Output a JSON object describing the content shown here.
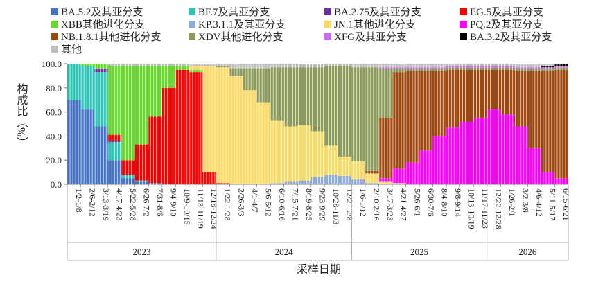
{
  "chart_data": {
    "type": "area",
    "stacked": true,
    "normalized": true,
    "x_tick_labels": [
      "1/2-1/8",
      "2/6-2/12",
      "3/13-3/19",
      "4/17-4/23",
      "5/22-5/28",
      "6/26-7/2",
      "7/31-8/6",
      "9/4-9/10",
      "10/9-10/15",
      "11/13-11/19",
      "12/18-12/24",
      "1/22-1/28",
      "2/26-3/3",
      "4/1-4/7",
      "5/6-5/12",
      "6/10-6/16",
      "7/15-7/21",
      "8/19-8/25",
      "9/23-9/29",
      "10/28-11/3",
      "12/2-12/8",
      "1/6-1/12",
      "2/10-2/16",
      "3/17-3/23",
      "4/21-4/27",
      "5/26-6/1",
      "6/30-7/6",
      "8/4-8/10",
      "9/8-9/14",
      "10/13-10/19",
      "11/17-11/23",
      "12/22-12/28",
      "1/26-2/1",
      "3/2-3/8",
      "4/6-4/12",
      "5/11-5/17",
      "6/15-6/21"
    ],
    "years": [
      {
        "label": "2023",
        "from": 0,
        "to": 10
      },
      {
        "label": "2024",
        "from": 11,
        "to": 20
      },
      {
        "label": "2025",
        "from": 21,
        "to": 30
      },
      {
        "label": "2026",
        "from": 31,
        "to": 36
      }
    ],
    "ylabel": "构成比（%）",
    "xlabel": "采样日期",
    "ylim": [
      0,
      100
    ],
    "y_ticks": [
      0,
      20,
      40,
      60,
      80,
      100
    ],
    "y_tick_labels": [
      "0.0",
      "20.0",
      "40.0",
      "60.0",
      "80.0",
      "100.0"
    ],
    "legend_position": "top",
    "series": [
      {
        "name": "BA.5.2及其亚分支",
        "color": "#4472C4",
        "values": [
          70,
          62,
          48,
          20,
          5,
          2,
          1,
          0,
          0,
          0,
          0,
          0,
          0,
          0,
          0,
          0,
          0,
          0,
          0,
          0,
          0,
          0,
          0,
          0,
          0,
          0,
          0,
          0,
          0,
          0,
          0,
          0,
          0,
          0,
          0,
          0,
          0
        ]
      },
      {
        "name": "BF.7及其亚分支",
        "color": "#2EC4B6",
        "values": [
          30,
          36,
          45,
          15,
          3,
          1,
          0,
          0,
          0,
          0,
          0,
          0,
          0,
          0,
          0,
          0,
          0,
          0,
          0,
          0,
          0,
          0,
          0,
          0,
          0,
          0,
          0,
          0,
          0,
          0,
          0,
          0,
          0,
          0,
          0,
          0,
          0
        ]
      },
      {
        "name": "BA.2.75及其亚分支",
        "color": "#7030A0",
        "values": [
          0,
          0,
          3,
          1,
          0,
          0,
          0,
          0,
          0,
          0,
          0,
          0,
          0,
          0,
          0,
          0,
          0,
          0,
          0,
          0,
          0,
          0,
          0,
          0,
          0,
          0,
          0,
          0,
          0,
          0,
          0,
          0,
          0,
          0,
          0,
          0,
          0
        ]
      },
      {
        "name": "EG.5及其亚分支",
        "color": "#FF0000",
        "values": [
          0,
          0,
          0,
          5,
          12,
          30,
          55,
          80,
          95,
          93,
          10,
          1,
          0,
          0,
          0,
          0,
          0,
          0,
          0,
          0,
          0,
          0,
          0,
          0,
          0,
          0,
          0,
          0,
          0,
          0,
          0,
          0,
          0,
          0,
          0,
          0,
          0
        ]
      },
      {
        "name": "XBB其他进化分支",
        "color": "#66D92A",
        "values": [
          0,
          2,
          4,
          57,
          78,
          65,
          42,
          18,
          3,
          2,
          0,
          0,
          0,
          0,
          0,
          0,
          0,
          0,
          0,
          0,
          0,
          0,
          0,
          0,
          0,
          0,
          0,
          0,
          0,
          0,
          0,
          0,
          0,
          0,
          0,
          0,
          0
        ]
      },
      {
        "name": "KP.3.1.1及其亚分支",
        "color": "#8FAADC",
        "values": [
          0,
          0,
          0,
          0,
          0,
          0,
          0,
          0,
          0,
          0,
          0,
          0,
          0,
          0,
          0,
          1,
          2,
          3,
          6,
          8,
          7,
          4,
          1,
          0,
          0,
          0,
          0,
          0,
          0,
          0,
          0,
          0,
          0,
          0,
          0,
          0,
          0
        ]
      },
      {
        "name": "JN.1其他进化分支",
        "color": "#FFD966",
        "values": [
          0,
          0,
          0,
          0,
          0,
          0,
          0,
          0,
          0,
          3,
          88,
          96,
          90,
          78,
          68,
          52,
          46,
          46,
          38,
          24,
          16,
          15,
          8,
          2,
          1,
          0,
          0,
          0,
          0,
          0,
          0,
          0,
          0,
          0,
          0,
          0,
          0
        ]
      },
      {
        "name": "PQ.2及其亚分支",
        "color": "#FF00FF",
        "values": [
          0,
          0,
          0,
          0,
          0,
          0,
          0,
          0,
          0,
          0,
          0,
          0,
          0,
          0,
          0,
          0,
          0,
          0,
          0,
          0,
          0,
          0,
          0,
          3,
          12,
          18,
          28,
          40,
          47,
          52,
          55,
          62,
          58,
          48,
          30,
          10,
          5
        ]
      },
      {
        "name": "NB.1.8.1其他进化分支",
        "color": "#9E480E",
        "values": [
          0,
          0,
          0,
          0,
          0,
          0,
          0,
          0,
          0,
          0,
          0,
          0,
          0,
          0,
          0,
          0,
          0,
          0,
          0,
          0,
          0,
          0,
          2,
          50,
          80,
          76,
          66,
          54,
          48,
          43,
          40,
          33,
          37,
          46,
          64,
          84,
          90
        ]
      },
      {
        "name": "XDV其他进化分支",
        "color": "#8A9A5B",
        "values": [
          0,
          0,
          0,
          0,
          0,
          0,
          0,
          0,
          0,
          0,
          0,
          1,
          6,
          18,
          28,
          44,
          49,
          48,
          53,
          66,
          75,
          78,
          86,
          41,
          3,
          2,
          2,
          2,
          2,
          2,
          2,
          2,
          2,
          2,
          2,
          2,
          2
        ]
      },
      {
        "name": "XFG及其亚分支",
        "color": "#CC66FF",
        "values": [
          0,
          0,
          0,
          0,
          0,
          0,
          0,
          0,
          0,
          0,
          0,
          0,
          0,
          0,
          0,
          0,
          0,
          0,
          0,
          0,
          0,
          0,
          0,
          1,
          1,
          1,
          1,
          1,
          1,
          1,
          1,
          1,
          1,
          1,
          1,
          1,
          1
        ]
      },
      {
        "name": "BA.3.2及其亚分支",
        "color": "#000000",
        "values": [
          0,
          0,
          0,
          0,
          0,
          0,
          0,
          0,
          0,
          0,
          0,
          0,
          0,
          0,
          0,
          0,
          0,
          0,
          0,
          0,
          0,
          0,
          0,
          0,
          0,
          0,
          0,
          0,
          0,
          0,
          0,
          0,
          0,
          0,
          0,
          1,
          2
        ]
      },
      {
        "name": "其他",
        "color": "#BFBFBF",
        "values": [
          0,
          0,
          0,
          2,
          2,
          2,
          2,
          2,
          2,
          2,
          2,
          2,
          4,
          4,
          4,
          3,
          3,
          3,
          3,
          2,
          2,
          3,
          3,
          3,
          3,
          3,
          3,
          3,
          2,
          2,
          2,
          2,
          2,
          3,
          3,
          2,
          0
        ]
      }
    ]
  }
}
